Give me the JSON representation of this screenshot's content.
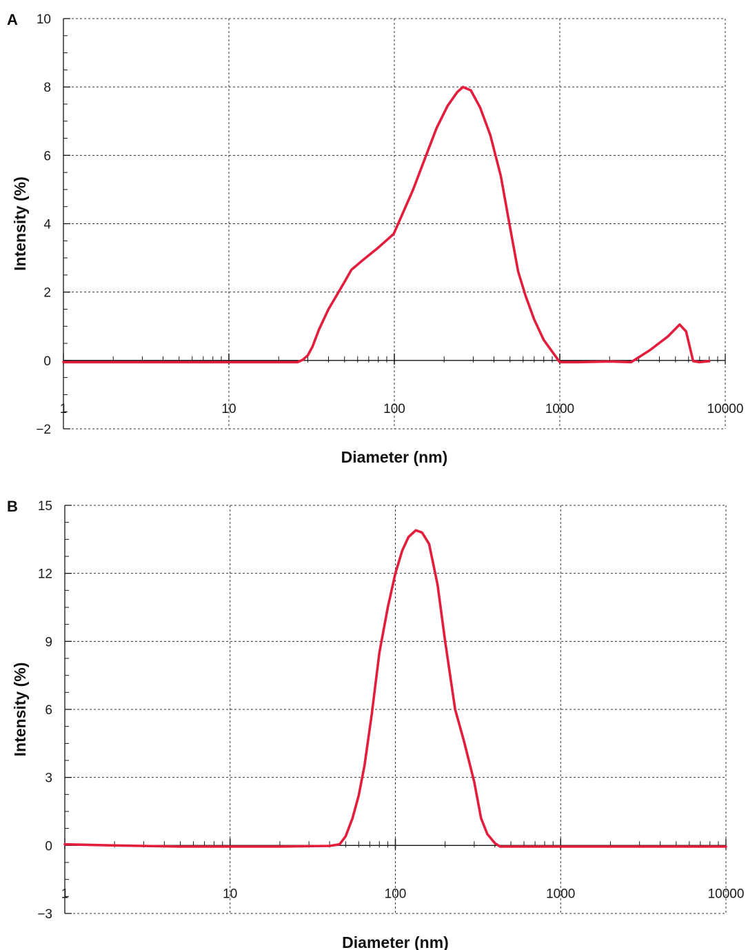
{
  "chart_data": [
    {
      "type": "line",
      "panel_label": "A",
      "title": "",
      "xlabel": "Diameter (nm)",
      "ylabel": "Intensity (%)",
      "x_scale": "log",
      "xlim": [
        1,
        10000
      ],
      "ylim": [
        -2,
        10
      ],
      "x_ticks": [
        "1",
        "10",
        "100",
        "1000",
        "10000"
      ],
      "y_ticks": [
        "−2",
        "0",
        "2",
        "4",
        "6",
        "8",
        "10"
      ],
      "x_tick_values": [
        1,
        10,
        100,
        1000,
        10000
      ],
      "y_tick_values": [
        -2,
        0,
        2,
        4,
        6,
        8,
        10
      ],
      "grid": true,
      "legend": "none",
      "color": "#e31e3c",
      "series": [
        {
          "x": [
            1,
            10,
            26,
            28,
            30,
            32,
            35,
            40,
            46,
            50,
            55,
            65,
            80,
            99,
            110,
            130,
            150,
            180,
            210,
            240,
            260,
            290,
            330,
            380,
            440,
            500,
            560,
            620,
            700,
            800,
            1000,
            1300,
            2000,
            2700,
            3500,
            4500,
            5300,
            5800,
            6100,
            6400,
            7000,
            8000
          ],
          "y": [
            -0.05,
            -0.05,
            -0.05,
            0.02,
            0.15,
            0.4,
            0.9,
            1.5,
            2.0,
            2.3,
            2.65,
            2.95,
            3.3,
            3.7,
            4.2,
            5.0,
            5.8,
            6.8,
            7.45,
            7.85,
            8.0,
            7.9,
            7.4,
            6.6,
            5.4,
            3.9,
            2.6,
            1.9,
            1.2,
            0.6,
            -0.05,
            -0.05,
            -0.03,
            -0.05,
            0.3,
            0.7,
            1.05,
            0.85,
            0.4,
            -0.02,
            -0.05,
            -0.02
          ]
        }
      ]
    },
    {
      "type": "line",
      "panel_label": "B",
      "title": "",
      "xlabel": "Diameter (nm)",
      "ylabel": "Intensity (%)",
      "x_scale": "log",
      "xlim": [
        1,
        10000
      ],
      "ylim": [
        -3,
        15
      ],
      "x_ticks": [
        "1",
        "10",
        "100",
        "1000",
        "10000"
      ],
      "y_ticks": [
        "−3",
        "0",
        "3",
        "6",
        "9",
        "12",
        "15"
      ],
      "x_tick_values": [
        1,
        10,
        100,
        1000,
        10000
      ],
      "y_tick_values": [
        -3,
        0,
        3,
        6,
        9,
        12,
        15
      ],
      "grid": true,
      "legend": "none",
      "color": "#e31e3c",
      "series": [
        {
          "x": [
            1,
            2,
            5,
            10,
            20,
            40,
            46,
            50,
            55,
            60,
            65,
            72,
            80,
            90,
            100,
            110,
            120,
            133,
            145,
            160,
            180,
            200,
            230,
            260,
            300,
            330,
            360,
            400,
            430,
            500,
            1000,
            5000,
            10000
          ],
          "y": [
            0.05,
            0.0,
            -0.05,
            -0.05,
            -0.05,
            -0.02,
            0.05,
            0.4,
            1.2,
            2.2,
            3.5,
            5.8,
            8.5,
            10.5,
            12.0,
            13.0,
            13.6,
            13.9,
            13.8,
            13.3,
            11.5,
            9.0,
            6.0,
            4.6,
            2.8,
            1.2,
            0.5,
            0.1,
            -0.05,
            -0.05,
            -0.05,
            -0.05,
            -0.05
          ]
        }
      ]
    }
  ]
}
